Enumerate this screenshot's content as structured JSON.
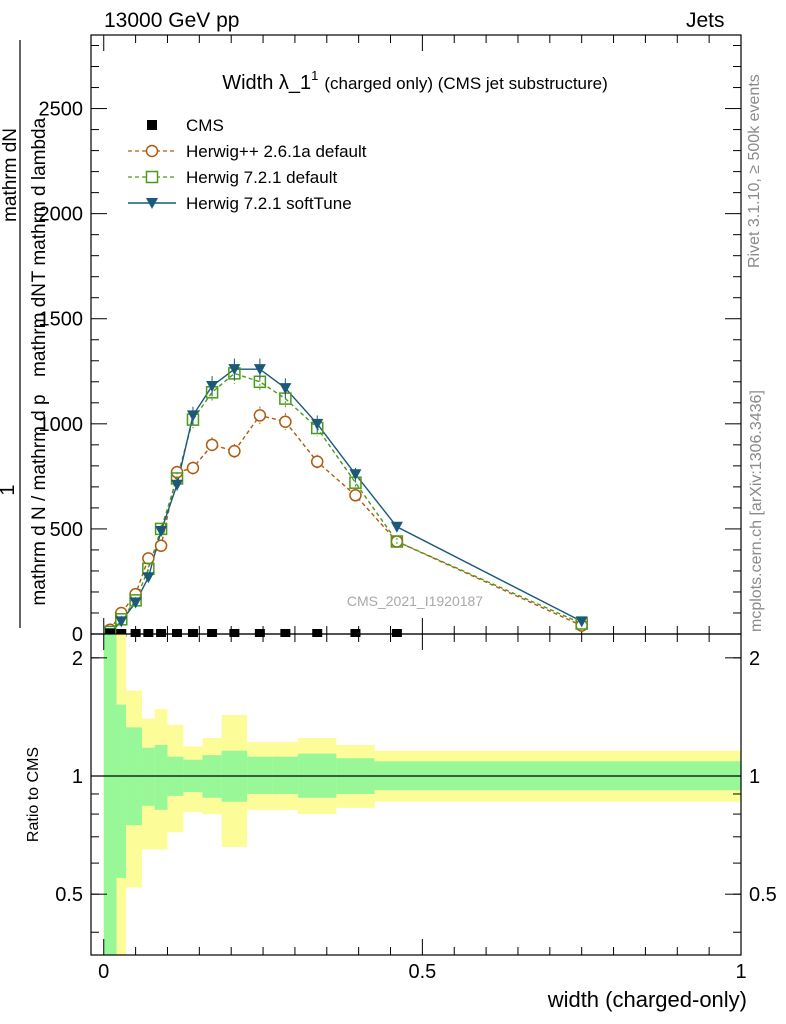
{
  "header": {
    "left": "13000 GeV pp",
    "right": "Jets"
  },
  "side_labels": {
    "rivet": "Rivet 3.1.10, ≥ 500k events",
    "mcplots": "mcplots.cern.ch [arXiv:1306.3436]"
  },
  "colors": {
    "cms": "#000000",
    "herwig_pp": "#b05a10",
    "herwig_default": "#4a9a1a",
    "herwig_soft": "#1a5a78",
    "band_inner": "#98f898",
    "band_outer": "#fcfc98"
  },
  "chart_data": [
    {
      "type": "line",
      "title_main": "Width λ_1",
      "title_sup": "1",
      "title_rest": "(charged only) (CMS jet substructure)",
      "ylabel": "1 / mathrm d N / mathrm d p_T mathrm d p_T mathrm dN / mathrm d p_T mathrm d lambda",
      "ylabel_lines": [
        "mathrm d N / mathrm d p",
        "T",
        "mathrm d p",
        "T",
        "mathrm dN",
        "mathrm d p",
        "T",
        "mathrm d lambda",
        "1"
      ],
      "ylim": [
        0,
        2850
      ],
      "yticks": [
        0,
        500,
        1000,
        1500,
        2000,
        2500
      ],
      "ytick_labels": [
        "0",
        "500",
        "1000",
        "1500",
        "2000",
        "2500"
      ],
      "xlim": [
        -0.02,
        1.0
      ],
      "watermark": "CMS_2021_I1920187",
      "legend": [
        "CMS",
        "Herwig++ 2.6.1a default",
        "Herwig 7.2.1 default",
        "Herwig 7.2.1 softTune"
      ],
      "series": [
        {
          "name": "CMS",
          "x": [
            0.01,
            0.0275,
            0.05,
            0.07,
            0.09,
            0.115,
            0.14,
            0.17,
            0.205,
            0.245,
            0.285,
            0.335,
            0.395,
            0.46
          ],
          "values": [
            0,
            0,
            0,
            0,
            0,
            0,
            0,
            0,
            0,
            0,
            0,
            0,
            0,
            0
          ]
        },
        {
          "name": "Herwig++ 2.6.1a default",
          "x": [
            0.01,
            0.0275,
            0.05,
            0.07,
            0.09,
            0.115,
            0.14,
            0.17,
            0.205,
            0.245,
            0.285,
            0.335,
            0.395,
            0.46,
            0.75
          ],
          "values": [
            20,
            100,
            190,
            360,
            420,
            770,
            790,
            900,
            870,
            1040,
            1010,
            820,
            660,
            440,
            40
          ]
        },
        {
          "name": "Herwig 7.2.1 default",
          "x": [
            0.01,
            0.0275,
            0.05,
            0.07,
            0.09,
            0.115,
            0.14,
            0.17,
            0.205,
            0.245,
            0.285,
            0.335,
            0.395,
            0.46,
            0.75
          ],
          "values": [
            10,
            70,
            160,
            310,
            500,
            740,
            1020,
            1150,
            1240,
            1200,
            1120,
            980,
            720,
            440,
            50
          ]
        },
        {
          "name": "Herwig 7.2.1 softTune",
          "x": [
            0.01,
            0.0275,
            0.05,
            0.07,
            0.09,
            0.115,
            0.14,
            0.17,
            0.205,
            0.245,
            0.285,
            0.335,
            0.395,
            0.46,
            0.75
          ],
          "values": [
            5,
            60,
            150,
            270,
            490,
            710,
            1040,
            1180,
            1260,
            1260,
            1170,
            1000,
            760,
            510,
            60
          ]
        }
      ]
    },
    {
      "type": "area",
      "ylabel": "Ratio to CMS",
      "ylim": [
        0.35,
        2.3
      ],
      "yticks": [
        0.5,
        1,
        2
      ],
      "ytick_labels": [
        "0.5",
        "1",
        "2"
      ],
      "xlim": [
        -0.02,
        1.0
      ],
      "xticks": [
        0,
        0.5,
        1
      ],
      "xtick_labels": [
        "0",
        "0.5",
        "1"
      ],
      "xlabel": "width (charged-only)",
      "bins": [
        0,
        0.02,
        0.035,
        0.06,
        0.08,
        0.1,
        0.125,
        0.155,
        0.185,
        0.225,
        0.265,
        0.305,
        0.365,
        0.425,
        1.0
      ],
      "inner_upper": [
        2.3,
        1.52,
        1.33,
        1.18,
        1.2,
        1.12,
        1.1,
        1.13,
        1.16,
        1.12,
        1.12,
        1.14,
        1.11,
        1.09
      ],
      "inner_lower": [
        0.35,
        0.55,
        0.75,
        0.84,
        0.82,
        0.89,
        0.91,
        0.88,
        0.86,
        0.9,
        0.9,
        0.88,
        0.9,
        0.92
      ],
      "outer_upper": [
        2.3,
        2.3,
        1.65,
        1.4,
        1.48,
        1.35,
        1.19,
        1.25,
        1.43,
        1.22,
        1.22,
        1.25,
        1.2,
        1.16
      ],
      "outer_lower": [
        0.35,
        0.35,
        0.52,
        0.65,
        0.65,
        0.72,
        0.81,
        0.8,
        0.66,
        0.82,
        0.82,
        0.8,
        0.83,
        0.86
      ],
      "reference": 1
    }
  ]
}
